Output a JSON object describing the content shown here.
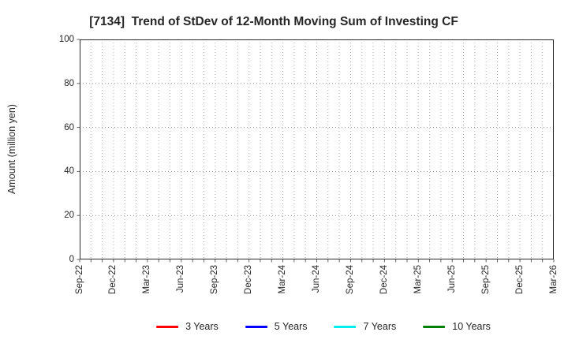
{
  "title": "[7134]  Trend of StDev of 12-Month Moving Sum of Investing CF",
  "y_axis_label": "Amount (million yen)",
  "legend": {
    "items": [
      {
        "label": "3 Years",
        "color": "#ff0000"
      },
      {
        "label": "5 Years",
        "color": "#0000ff"
      },
      {
        "label": "7 Years",
        "color": "#00eeee"
      },
      {
        "label": "10 Years",
        "color": "#008000"
      }
    ]
  },
  "chart_data": {
    "type": "line",
    "title": "[7134]  Trend of StDev of 12-Month Moving Sum of Investing CF",
    "xlabel": "",
    "ylabel": "Amount (million yen)",
    "ylim": [
      0,
      100
    ],
    "y_ticks": [
      0,
      20,
      40,
      60,
      80,
      100
    ],
    "x_tick_labels": [
      "Sep-22",
      "Dec-22",
      "Mar-23",
      "Jun-23",
      "Sep-23",
      "Dec-23",
      "Mar-24",
      "Jun-24",
      "Sep-24",
      "Dec-24",
      "Mar-25",
      "Jun-25",
      "Sep-25",
      "Dec-25",
      "Mar-26"
    ],
    "x_major_interval_months": 3,
    "x_minor_interval_months": 1,
    "months_span": 42,
    "grid": true,
    "legend_position": "bottom-center",
    "series": [
      {
        "name": "3 Years",
        "color": "#ff0000",
        "values": []
      },
      {
        "name": "5 Years",
        "color": "#0000ff",
        "values": []
      },
      {
        "name": "7 Years",
        "color": "#00eeee",
        "values": []
      },
      {
        "name": "10 Years",
        "color": "#008000",
        "values": []
      }
    ],
    "note": "Plot area is empty - no data lines are drawn within the visible axes",
    "colors": {
      "frame": "#2b2b2b",
      "grid_vertical": "#b3b3b3",
      "grid_horizontal": "#999999",
      "tick": "#555555",
      "text": "#262626"
    }
  }
}
